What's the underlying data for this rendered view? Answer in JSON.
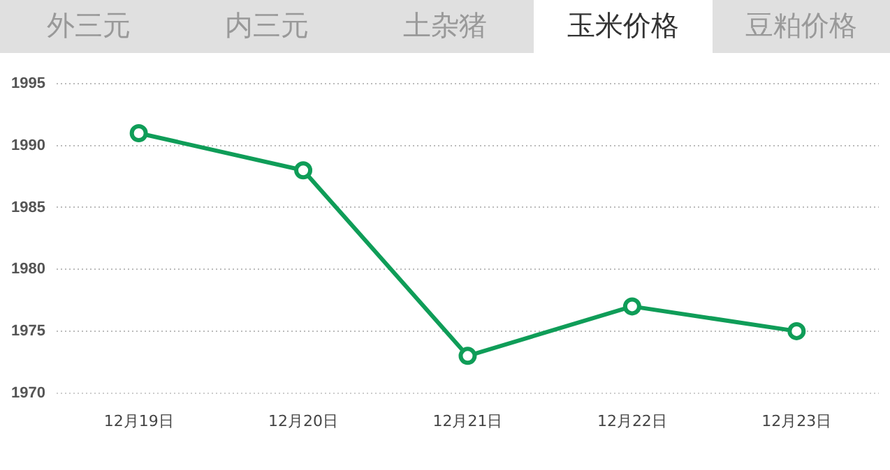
{
  "chart_data": {
    "type": "line",
    "annotations": [
      "外三元",
      "内三元",
      "土杂猪",
      "玉米价格",
      "豆粕价格"
    ],
    "categories": [
      "12月19日",
      "12月20日",
      "12月21日",
      "12月22日",
      "12月23日"
    ],
    "series": [
      {
        "color": "#0f9d58",
        "values": [
          1991,
          1988,
          1973,
          1977,
          1975
        ]
      }
    ],
    "ylim": [
      1970,
      1995
    ],
    "yticks": [
      1970,
      1975,
      1980,
      1985,
      1990,
      1995
    ],
    "grid": "y",
    "marker": "circle",
    "line_style": "solid",
    "legend": false
  }
}
